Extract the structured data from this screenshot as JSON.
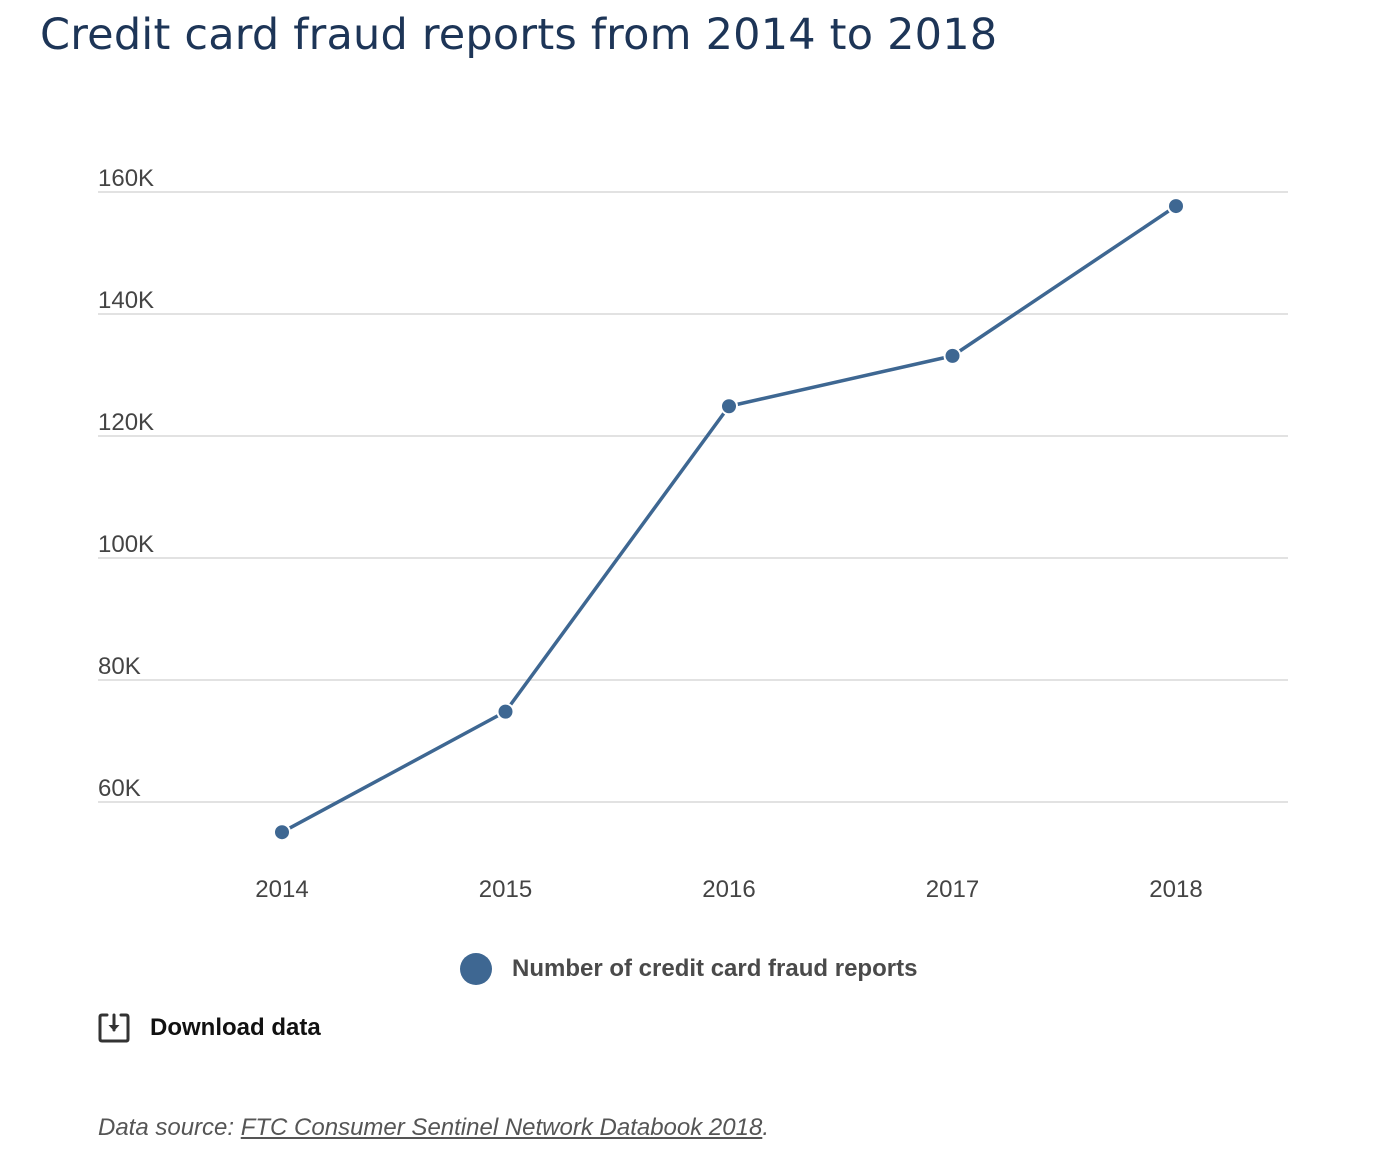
{
  "page": {
    "download_label": "Download data",
    "source_prefix": "Data source: ",
    "source_link": "FTC Consumer Sentinel Network Databook 2018",
    "source_suffix": "."
  },
  "colors": {
    "series": "#3e6792",
    "title": "#1d3557",
    "grid": "#d9d9d9"
  },
  "icons": {
    "download": "download-icon"
  },
  "chart_data": {
    "type": "line",
    "title": "Credit card fraud reports from 2014 to 2018",
    "xlabel": "",
    "ylabel": "",
    "x": [
      "2014",
      "2015",
      "2016",
      "2017",
      "2018"
    ],
    "series": [
      {
        "name": "Number of credit card fraud reports",
        "values": [
          55045,
          74815,
          124877,
          133135,
          157688
        ]
      }
    ],
    "ylim": [
      60000,
      160000
    ],
    "yticks": [
      60000,
      80000,
      100000,
      120000,
      140000,
      160000
    ],
    "ytick_labels": [
      "60K",
      "80K",
      "100K",
      "120K",
      "140K",
      "160K"
    ],
    "grid": true,
    "legend": "bottom-center",
    "markers": true
  }
}
